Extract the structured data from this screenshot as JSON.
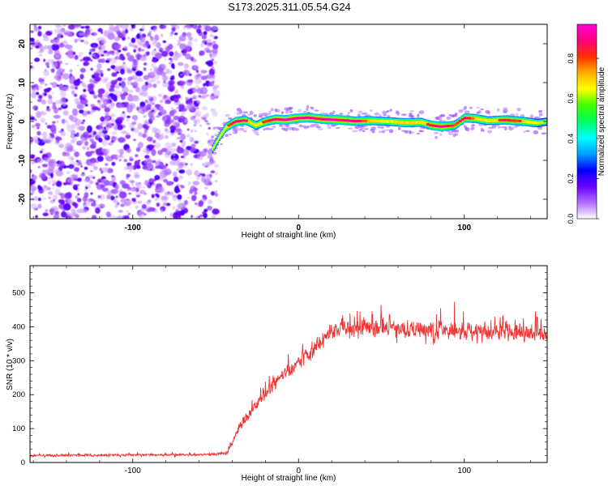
{
  "title": "S173.2025.311.05.54.G24",
  "chart_data": [
    {
      "type": "heatmap",
      "name": "spectrogram",
      "xlabel": "Height of straight line (km)",
      "ylabel": "Frequency (Hz)",
      "xlim": [
        -162,
        150
      ],
      "ylim": [
        -25,
        25
      ],
      "xticks": [
        -100,
        0,
        100
      ],
      "xtick_labels": [
        "-100",
        "0",
        "100"
      ],
      "yticks": [
        -20,
        -10,
        0,
        10,
        20
      ],
      "ytick_labels": [
        "-20",
        "-10",
        "0",
        "10",
        "20"
      ],
      "noise_region_x": [
        -162,
        -52
      ],
      "ridge": {
        "x": [
          -52,
          -48,
          -44,
          -38,
          -32,
          -26,
          -20,
          -14,
          -8,
          -2,
          6,
          14,
          24,
          34,
          44,
          54,
          64,
          74,
          80,
          86,
          94,
          100,
          106,
          114,
          124,
          134,
          144,
          150
        ],
        "freq": [
          -7,
          -4,
          -1.5,
          0,
          0.3,
          -1,
          0,
          0.6,
          0.4,
          0.8,
          1,
          0.6,
          0.4,
          0.1,
          0.2,
          0,
          -0.3,
          -0.2,
          -1,
          -1.3,
          -1,
          0.9,
          0.8,
          0.2,
          0.4,
          0.1,
          -0.4,
          0
        ],
        "amp": [
          0.55,
          0.6,
          0.75,
          0.9,
          0.85,
          0.7,
          0.85,
          0.9,
          0.95,
          0.95,
          0.9,
          0.95,
          0.95,
          0.9,
          0.75,
          0.7,
          0.8,
          0.75,
          0.85,
          0.95,
          0.8,
          0.9,
          0.8,
          0.7,
          0.85,
          0.8,
          0.6,
          0.5
        ]
      },
      "colorbar": {
        "label": "Normalized spectral amplitude",
        "range": [
          0,
          0.97
        ],
        "ticks": [
          0.0,
          0.2,
          0.4,
          0.6,
          0.8
        ],
        "tick_labels": [
          "0.0",
          "0.2",
          "0.4",
          "0.6",
          "0.8"
        ],
        "colors": [
          "#ffffff",
          "#b06cff",
          "#6a00ff",
          "#0000ff",
          "#00a0ff",
          "#00ffff",
          "#00ff60",
          "#40ff00",
          "#ffff00",
          "#ffb000",
          "#ff3000",
          "#ff0080",
          "#ff00d8"
        ]
      }
    },
    {
      "type": "line",
      "name": "snr",
      "xlabel": "Height of straight line (km)",
      "ylabel": "SNR (10 * v/v)",
      "xlim": [
        -162,
        150
      ],
      "ylim": [
        0,
        580
      ],
      "xticks": [
        -100,
        0,
        100
      ],
      "xtick_labels": [
        "-100",
        "0",
        "100"
      ],
      "yticks": [
        0,
        100,
        200,
        300,
        400,
        500
      ],
      "ytick_labels": [
        "0",
        "100",
        "200",
        "300",
        "400",
        "500"
      ],
      "color": "#ee3333",
      "envelope": {
        "x": [
          -162,
          -100,
          -50,
          -43,
          -40,
          -35,
          -30,
          -25,
          -20,
          -15,
          -10,
          -5,
          0,
          5,
          10,
          15,
          20,
          30,
          40,
          50,
          60,
          70,
          80,
          90,
          100,
          110,
          120,
          130,
          140,
          150
        ],
        "mean": [
          20,
          22,
          24,
          30,
          60,
          110,
          140,
          175,
          200,
          230,
          255,
          275,
          300,
          315,
          340,
          365,
          385,
          400,
          395,
          400,
          390,
          395,
          385,
          390,
          380,
          385,
          385,
          380,
          380,
          375
        ],
        "noise_pm": [
          10,
          10,
          10,
          15,
          30,
          40,
          45,
          50,
          55,
          55,
          55,
          60,
          60,
          65,
          70,
          70,
          75,
          80,
          80,
          80,
          80,
          80,
          80,
          80,
          80,
          80,
          80,
          80,
          80,
          80
        ]
      }
    }
  ]
}
